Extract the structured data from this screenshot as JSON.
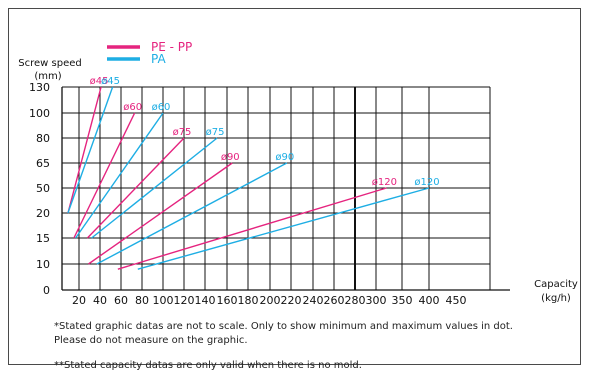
{
  "chart_data": {
    "type": "line",
    "ylabel_line1": "Screw speed",
    "ylabel_line2": "(mm)",
    "xlabel_line1": "Capacity",
    "xlabel_line2": "(kg/h)",
    "yticks": [
      "0",
      "10",
      "15",
      "20",
      "50",
      "65",
      "80",
      "100",
      "130"
    ],
    "xticks": [
      "20",
      "40",
      "60",
      "80",
      "100",
      "120",
      "140",
      "160",
      "180",
      "200",
      "220",
      "240",
      "260",
      "280",
      "300",
      "350",
      "400",
      "450"
    ],
    "legend": [
      {
        "name": "PE - PP",
        "color": "#e5247f"
      },
      {
        "name": "PA",
        "color": "#1eaee4"
      }
    ],
    "series": [
      {
        "name": "PE - PP",
        "color": "#e5247f",
        "lines": [
          {
            "label": "ø45",
            "points": [
              [
                7,
                20
              ],
              [
                41,
                130
              ]
            ]
          },
          {
            "label": "ø60",
            "points": [
              [
                14,
                15
              ],
              [
                73,
                100
              ]
            ]
          },
          {
            "label": "ø75",
            "points": [
              [
                28,
                15
              ],
              [
                120,
                80
              ]
            ]
          },
          {
            "label": "ø90",
            "points": [
              [
                29,
                10
              ],
              [
                165,
                65
              ]
            ]
          },
          {
            "label": "ø120",
            "points": [
              [
                57,
                8
              ],
              [
                320,
                50
              ]
            ]
          }
        ]
      },
      {
        "name": "PA",
        "color": "#1eaee4",
        "lines": [
          {
            "label": "ø45",
            "points": [
              [
                7,
                20
              ],
              [
                52,
                130
              ]
            ]
          },
          {
            "label": "ø60",
            "points": [
              [
                16,
                15
              ],
              [
                100,
                100
              ]
            ]
          },
          {
            "label": "ø75",
            "points": [
              [
                32,
                15
              ],
              [
                151,
                80
              ]
            ]
          },
          {
            "label": "ø90",
            "points": [
              [
                37,
                10
              ],
              [
                216,
                65
              ]
            ]
          },
          {
            "label": "ø120",
            "points": [
              [
                76,
                8
              ],
              [
                400,
                50
              ]
            ]
          }
        ]
      }
    ]
  },
  "notes": {
    "note1_line1": "*Stated graphic datas are not to scale. Only to show minimum and maximum values in dot.",
    "note1_line2": "Please do not measure on the graphic.",
    "note2": "**Stated capacity datas are only valid when there is no mold."
  }
}
